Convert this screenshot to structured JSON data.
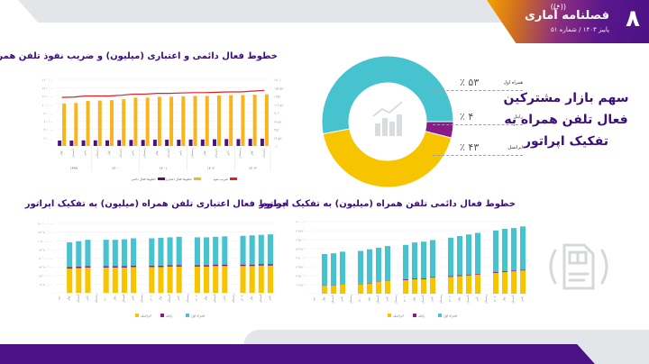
{
  "header": {
    "page_number": "۸",
    "brand": "فصلنامه آماری",
    "issue": "پاییز ۱۴۰۳ / شماره ۵۱",
    "wifi_icon": "wifi-icon"
  },
  "titles": {
    "chart1": "خطوط فعال دائمی و اعتباری (میلیون) و ضریب نفوذ تلفن همراه",
    "chart2": "خطوط فعال اعتباری تلفن همراه (میلیون) به تفکیک اپراتور",
    "chart3": "خطوط فعال دائمی تلفن همراه (میلیون) به تفکیک اپراتور",
    "pie": "سهم بازار مشترکین فعال تلفن همراه به تفکیک اپراتور"
  },
  "colors": {
    "purple": "#4b1285",
    "yellow": "#f9b31b",
    "red": "#e02020",
    "teal": "#46c3cf",
    "gold": "#f7c400",
    "rightel": "#8a1a8a"
  },
  "chart_data": [
    {
      "type": "bar",
      "title": "خطوط فعال دائمی و اعتباری (میلیون) و ضریب نفوذ تلفن همراه",
      "categories": [
        "بهار",
        "تابستان",
        "پاییز",
        "زمستان",
        "بهار",
        "تابستان",
        "پاییز",
        "زمستان",
        "بهار",
        "تابستان",
        "پاییز",
        "زمستان",
        "بهار",
        "تابستان",
        "پاییز",
        "زمستان",
        "بهار",
        "تابستان"
      ],
      "groups": [
        {
          "label": "۱۳۹۹",
          "count": 3
        },
        {
          "label": "۱۴۰۰",
          "count": 4
        },
        {
          "label": "۱۴۰۱",
          "count": 4
        },
        {
          "label": "۱۴۰۲",
          "count": 4
        },
        {
          "label": "۱۴۰۳",
          "count": 3
        }
      ],
      "series": [
        {
          "name": "خطوط فعال دائمی",
          "type": "bar",
          "values": [
            13,
            13,
            13.5,
            13.5,
            13.5,
            14,
            14.5,
            14.5,
            15,
            15,
            15,
            15.5,
            15.5,
            16,
            16.5,
            16.5,
            17,
            17.5
          ]
        },
        {
          "name": "خطوط فعال اعتباری",
          "type": "bar",
          "values": [
            102,
            103,
            108,
            109,
            110,
            112,
            116,
            116,
            118,
            118,
            119,
            120,
            120,
            121,
            122,
            122,
            123,
            124
          ]
        },
        {
          "name": "ضریب نفوذ",
          "type": "line",
          "axis": "right",
          "values": [
            131,
            132,
            135,
            135,
            135,
            137,
            140,
            140,
            142,
            142,
            143,
            144,
            144,
            145,
            146,
            146,
            148,
            150
          ]
        }
      ],
      "ylim": [
        0,
        160
      ],
      "y2lim": [
        0,
        180
      ],
      "legend": "bottom"
    },
    {
      "type": "bar",
      "stacked": true,
      "title": "خطوط فعال اعتباری تلفن همراه (میلیون) به تفکیک اپراتور",
      "categories": [
        "۹۹",
        "بهار",
        "تابستان",
        "پاییز",
        "زمستان",
        "۱۴۰۰",
        "بهار",
        "تابستان",
        "پاییز",
        "زمستان",
        "۱۴۰۱",
        "بهار",
        "تابستان",
        "پاییز",
        "زمستان",
        "۱۴۰۲",
        "بهار",
        "تابستان",
        "پاییز",
        "زمستان",
        "۱۴۰۳",
        "بهار",
        "تابستان",
        "پاییز"
      ],
      "series": [
        {
          "name": "ایرانسل",
          "values": [
            null,
            49,
            50,
            51,
            null,
            51,
            51,
            51,
            52,
            null,
            52,
            52,
            53,
            53,
            null,
            53,
            53,
            54,
            54,
            null,
            54,
            54,
            55,
            55
          ]
        },
        {
          "name": "رایتل",
          "values": [
            null,
            3,
            3,
            3,
            null,
            3,
            3,
            3,
            3,
            null,
            3,
            3,
            3,
            3,
            null,
            3,
            3,
            3,
            3,
            null,
            3,
            3,
            3,
            3
          ]
        },
        {
          "name": "همراه اول",
          "values": [
            null,
            50,
            51,
            53,
            null,
            53,
            53,
            54,
            55,
            null,
            55,
            56,
            56,
            57,
            null,
            56,
            56,
            56,
            57,
            null,
            58,
            59,
            59,
            60
          ]
        }
      ],
      "ylim": [
        0,
        140
      ],
      "legend": "bottom"
    },
    {
      "type": "bar",
      "stacked": true,
      "title": "خطوط فعال دائمی تلفن همراه (میلیون) به تفکیک اپراتور",
      "categories": [
        "۹۹",
        "بهار",
        "تابستان",
        "پاییز",
        "زمستان",
        "۱۴۰۰",
        "بهار",
        "تابستان",
        "پاییز",
        "زمستان",
        "۱۴۰۱",
        "بهار",
        "تابستان",
        "پاییز",
        "زمستان",
        "۱۴۰۲",
        "بهار",
        "تابستان",
        "پاییز",
        "زمستان",
        "۱۴۰۳",
        "بهار",
        "تابستان",
        "پاییز"
      ],
      "series": [
        {
          "name": "ایرانسل",
          "values": [
            null,
            1.0,
            1.0,
            1.2,
            null,
            1.2,
            1.3,
            1.5,
            1.6,
            null,
            1.7,
            1.8,
            1.8,
            2.0,
            null,
            2.1,
            2.2,
            2.3,
            2.4,
            null,
            2.6,
            2.7,
            2.8,
            2.9
          ]
        },
        {
          "name": "رایتل",
          "values": [
            null,
            0.05,
            0.05,
            0.05,
            null,
            0.05,
            0.05,
            0.05,
            0.05,
            null,
            0.1,
            0.1,
            0.1,
            0.1,
            null,
            0.1,
            0.1,
            0.1,
            0.1,
            null,
            0.1,
            0.1,
            0.1,
            0.1
          ]
        },
        {
          "name": "همراه اول",
          "values": [
            null,
            3.9,
            4.0,
            4.0,
            null,
            4.1,
            4.2,
            4.2,
            4.3,
            null,
            4.3,
            4.5,
            4.6,
            4.6,
            null,
            4.8,
            4.9,
            5.0,
            5.1,
            null,
            5.2,
            5.3,
            5.3,
            5.4
          ]
        }
      ],
      "ylim": [
        0,
        9
      ],
      "legend": "bottom"
    },
    {
      "type": "pie",
      "title": "سهم بازار مشترکین فعال تلفن همراه به تفکیک اپراتور",
      "labels": [
        "همراه اول",
        "رایتل",
        "ایرانسل"
      ],
      "values": [
        53,
        4,
        43
      ],
      "display": [
        "۵۳ ٪",
        "۴ ٪",
        "۴۳ ٪"
      ]
    }
  ]
}
